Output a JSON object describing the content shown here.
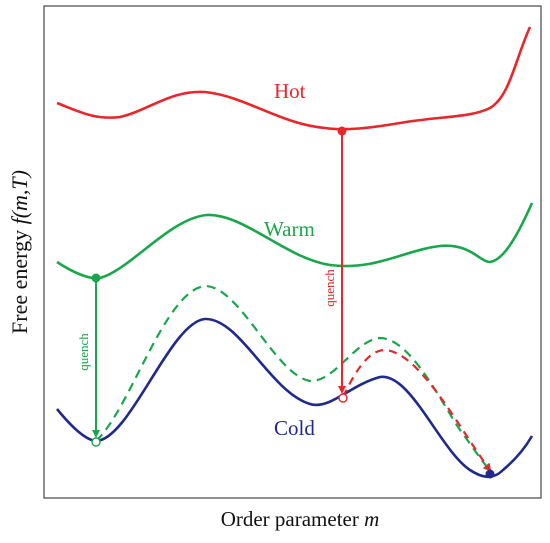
{
  "labels": {
    "hot": "Hot",
    "warm": "Warm",
    "cold": "Cold",
    "quench_left": "quench",
    "quench_right": "quench",
    "xlabel_prefix": "Order parameter ",
    "xlabel_var": "m",
    "ylabel_prefix": "Free energy ",
    "ylabel_f": "f",
    "ylabel_args": "(m,T)"
  },
  "colors": {
    "hot": "#e8262b",
    "warm": "#1aa64a",
    "cold": "#1f2a8c",
    "frame": "#222222"
  }
}
